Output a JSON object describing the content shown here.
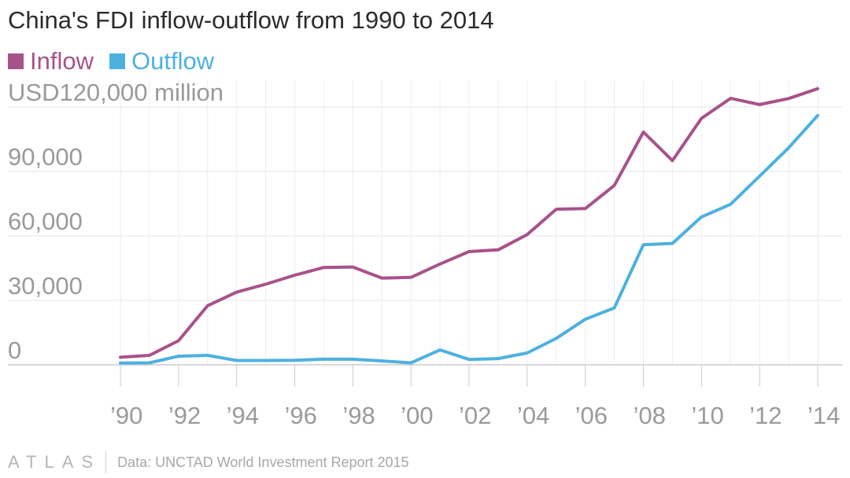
{
  "chart_data": {
    "type": "line",
    "title": "China's FDI inflow-outflow from 1990 to 2014",
    "x": [
      1990,
      1991,
      1992,
      1993,
      1994,
      1995,
      1996,
      1997,
      1998,
      1999,
      2000,
      2001,
      2002,
      2003,
      2004,
      2005,
      2006,
      2007,
      2008,
      2009,
      2010,
      2011,
      2012,
      2013,
      2014
    ],
    "x_tick_labels": [
      "’90",
      "’92",
      "’94",
      "’96",
      "’98",
      "’00",
      "’02",
      "’04",
      "’06",
      "’08",
      "’10",
      "’12",
      "’14"
    ],
    "x_tick_values": [
      1990,
      1992,
      1994,
      1996,
      1998,
      2000,
      2002,
      2004,
      2006,
      2008,
      2010,
      2012,
      2014
    ],
    "y_tick_labels": [
      "0",
      "30,000",
      "60,000",
      "90,000",
      "USD120,000 million"
    ],
    "y_tick_values": [
      0,
      30000,
      60000,
      90000,
      120000
    ],
    "ylim": [
      0,
      120000
    ],
    "xlim": [
      1990,
      2014
    ],
    "grid": true,
    "legend_position": "top-left",
    "series": [
      {
        "name": "Inflow",
        "color": "#a8528a",
        "values": [
          3500,
          4400,
          11200,
          27500,
          33800,
          37500,
          41700,
          45300,
          45500,
          40300,
          40700,
          46900,
          52700,
          53500,
          60600,
          72400,
          72700,
          83500,
          108300,
          95000,
          114700,
          124000,
          121100,
          123900,
          128500
        ]
      },
      {
        "name": "Outflow",
        "color": "#4db1e0",
        "values": [
          800,
          900,
          4000,
          4400,
          2000,
          2000,
          2100,
          2600,
          2600,
          1800,
          900,
          6900,
          2500,
          2900,
          5500,
          12300,
          21200,
          26500,
          55900,
          56500,
          68800,
          74700,
          87800,
          101000,
          116000
        ]
      }
    ]
  },
  "footer": {
    "logo": "ATLAS",
    "source": "Data: UNCTAD World Investment Report 2015"
  }
}
